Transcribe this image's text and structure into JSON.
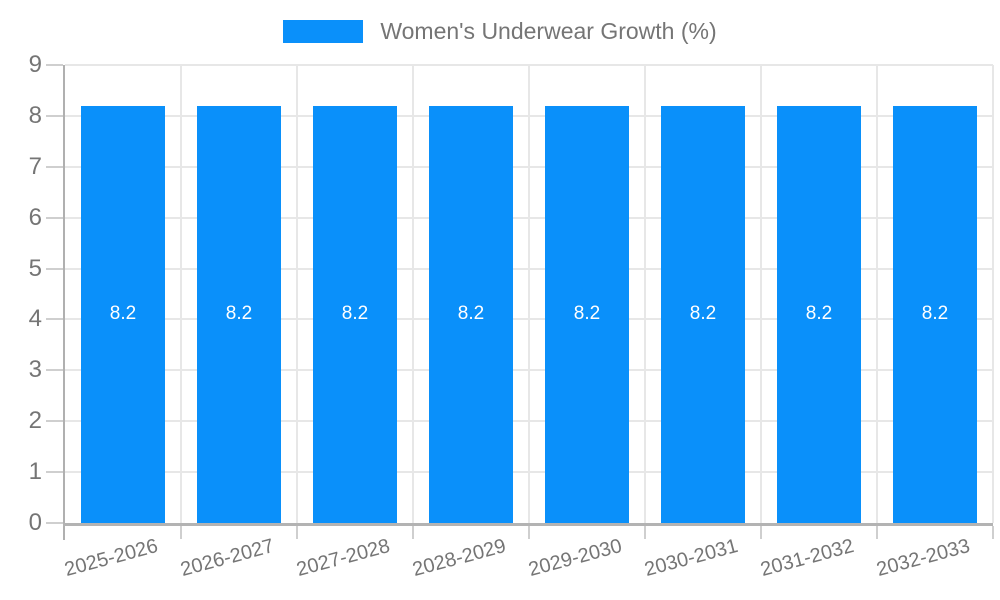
{
  "chart_data": {
    "type": "bar",
    "title": "",
    "legend_position": "top",
    "categories": [
      "2025-2026",
      "2026-2027",
      "2027-2028",
      "2028-2029",
      "2029-2030",
      "2030-2031",
      "2031-2032",
      "2032-2033"
    ],
    "series": [
      {
        "name": "Women's Underwear Growth (%)",
        "values": [
          8.2,
          8.2,
          8.2,
          8.2,
          8.2,
          8.2,
          8.2,
          8.2
        ]
      }
    ],
    "bar_labels": [
      "8.2",
      "8.2",
      "8.2",
      "8.2",
      "8.2",
      "8.2",
      "8.2",
      "8.2"
    ],
    "xlabel": "",
    "ylabel": "",
    "ylim": [
      0,
      9
    ],
    "yticks": [
      "0",
      "1",
      "2",
      "3",
      "4",
      "5",
      "6",
      "7",
      "8",
      "9"
    ],
    "grid": true,
    "colors": {
      "bar": "#0a90fa",
      "grid": "#e7e7e7",
      "axis": "#b3b3b3",
      "y_axis": "#b0b0b0",
      "tick_stub": "#cfcfcf",
      "text": "#757575",
      "bar_label": "#ffffff",
      "background": "#ffffff"
    }
  }
}
